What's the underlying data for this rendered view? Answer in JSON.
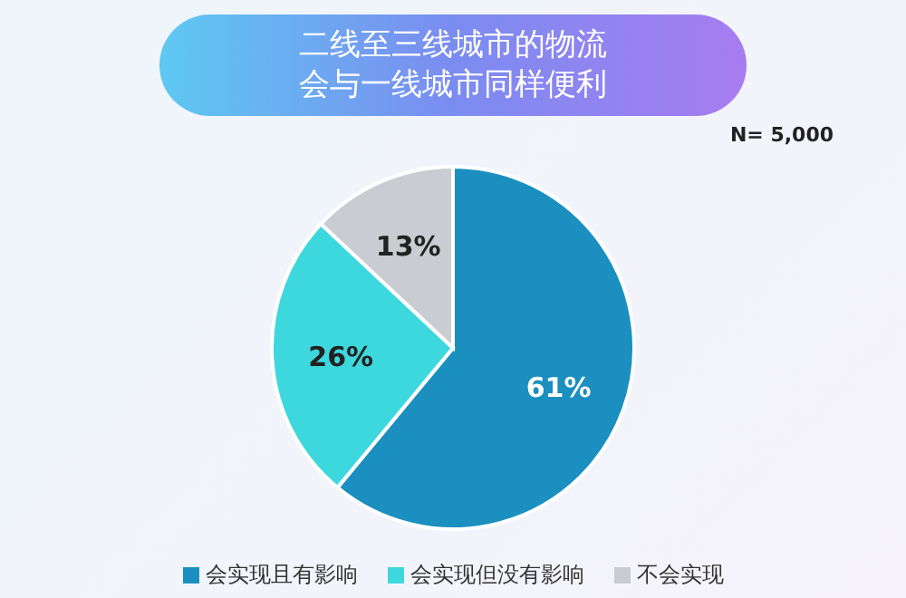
{
  "chart_data": {
    "type": "pie",
    "title": "二线至三线城市的物流会与一线城市同样便利",
    "annotations": [
      "N= 5,000"
    ],
    "categories": [
      "会实现且有影响",
      "会实现但没有影响",
      "不会实现"
    ],
    "values": [
      61,
      26,
      13
    ],
    "colors": [
      "#1b8fbf",
      "#3dd8de",
      "#c9ccd1"
    ],
    "value_labels": [
      "61%",
      "26%",
      "13%"
    ],
    "legend": "bottom"
  }
}
